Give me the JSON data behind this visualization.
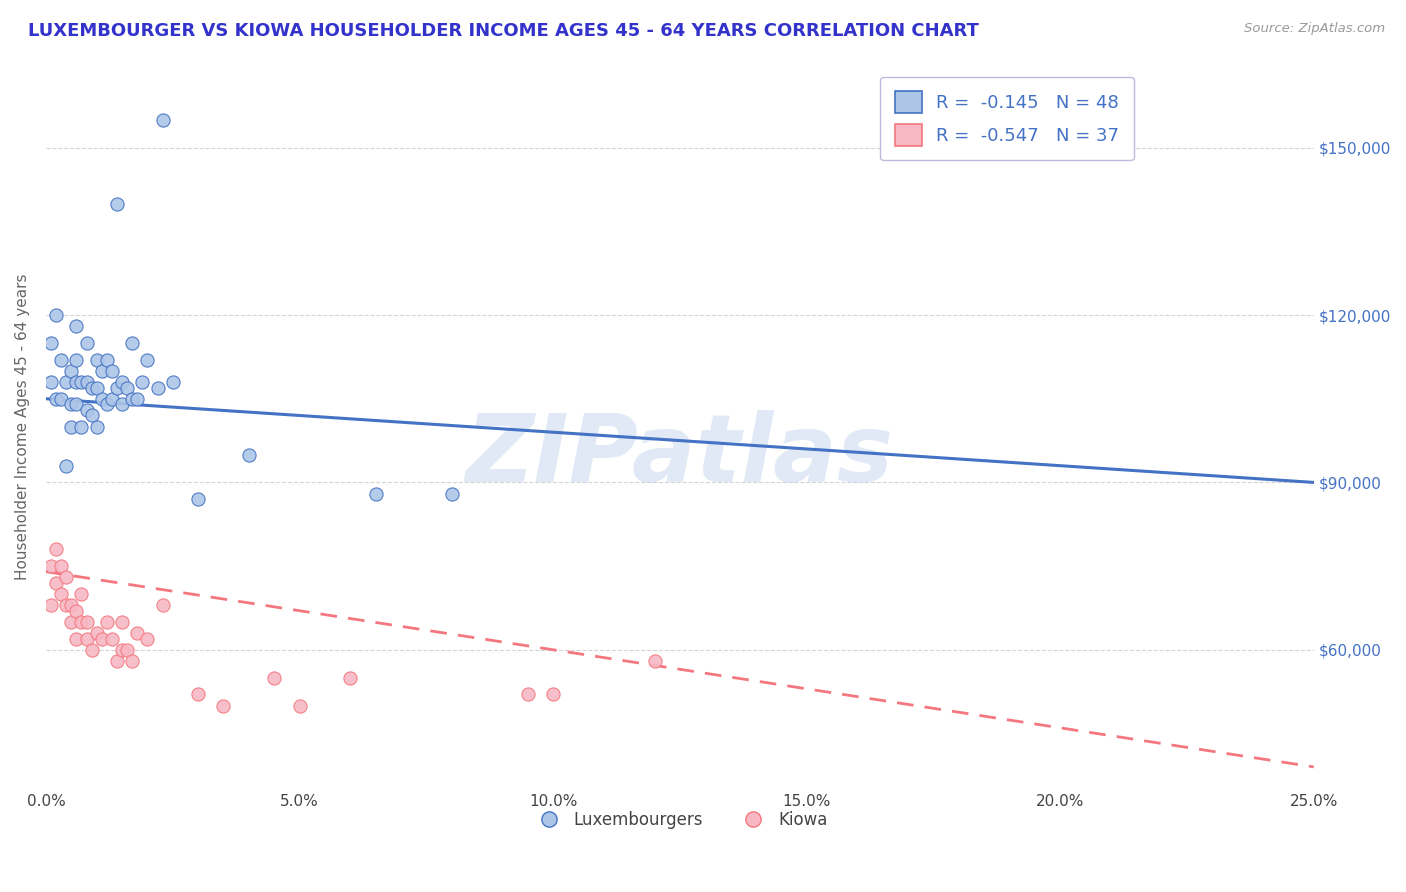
{
  "title": "LUXEMBOURGER VS KIOWA HOUSEHOLDER INCOME AGES 45 - 64 YEARS CORRELATION CHART",
  "source": "Source: ZipAtlas.com",
  "ylabel": "Householder Income Ages 45 - 64 years",
  "xlim": [
    0.0,
    0.25
  ],
  "ylim": [
    35000,
    165000
  ],
  "xtick_labels": [
    "0.0%",
    "5.0%",
    "10.0%",
    "15.0%",
    "20.0%",
    "25.0%"
  ],
  "xtick_vals": [
    0.0,
    0.05,
    0.1,
    0.15,
    0.2,
    0.25
  ],
  "ytick_labels": [
    "$60,000",
    "$90,000",
    "$120,000",
    "$150,000"
  ],
  "ytick_vals": [
    60000,
    90000,
    120000,
    150000
  ],
  "lux_color": "#adc6e8",
  "kiowa_color": "#f7b8c4",
  "lux_line_color": "#4472c4",
  "kiowa_line_color": "#f4777f",
  "lux_R": -0.145,
  "lux_N": 48,
  "kiowa_R": -0.547,
  "kiowa_N": 37,
  "lux_x": [
    0.001,
    0.001,
    0.002,
    0.002,
    0.003,
    0.003,
    0.004,
    0.004,
    0.005,
    0.005,
    0.005,
    0.006,
    0.006,
    0.006,
    0.006,
    0.007,
    0.007,
    0.008,
    0.008,
    0.008,
    0.009,
    0.009,
    0.01,
    0.01,
    0.01,
    0.011,
    0.011,
    0.012,
    0.012,
    0.013,
    0.013,
    0.014,
    0.014,
    0.015,
    0.015,
    0.016,
    0.017,
    0.017,
    0.018,
    0.019,
    0.02,
    0.022,
    0.023,
    0.025,
    0.03,
    0.04,
    0.065,
    0.08
  ],
  "lux_y": [
    108000,
    115000,
    105000,
    120000,
    105000,
    112000,
    93000,
    108000,
    100000,
    104000,
    110000,
    104000,
    108000,
    112000,
    118000,
    100000,
    108000,
    103000,
    108000,
    115000,
    102000,
    107000,
    100000,
    107000,
    112000,
    105000,
    110000,
    104000,
    112000,
    105000,
    110000,
    107000,
    140000,
    104000,
    108000,
    107000,
    105000,
    115000,
    105000,
    108000,
    112000,
    107000,
    155000,
    108000,
    87000,
    95000,
    88000,
    88000
  ],
  "kiowa_x": [
    0.001,
    0.001,
    0.002,
    0.002,
    0.003,
    0.003,
    0.004,
    0.004,
    0.005,
    0.005,
    0.006,
    0.006,
    0.007,
    0.007,
    0.008,
    0.008,
    0.009,
    0.01,
    0.011,
    0.012,
    0.013,
    0.014,
    0.015,
    0.015,
    0.016,
    0.017,
    0.018,
    0.02,
    0.023,
    0.03,
    0.035,
    0.045,
    0.05,
    0.06,
    0.095,
    0.1,
    0.12
  ],
  "kiowa_y": [
    75000,
    68000,
    72000,
    78000,
    70000,
    75000,
    68000,
    73000,
    65000,
    68000,
    62000,
    67000,
    65000,
    70000,
    62000,
    65000,
    60000,
    63000,
    62000,
    65000,
    62000,
    58000,
    60000,
    65000,
    60000,
    58000,
    63000,
    62000,
    68000,
    52000,
    50000,
    55000,
    50000,
    55000,
    52000,
    52000,
    58000
  ],
  "background_color": "#ffffff",
  "grid_color": "#d0d0d0",
  "title_color": "#3333cc",
  "axis_label_color": "#666666"
}
